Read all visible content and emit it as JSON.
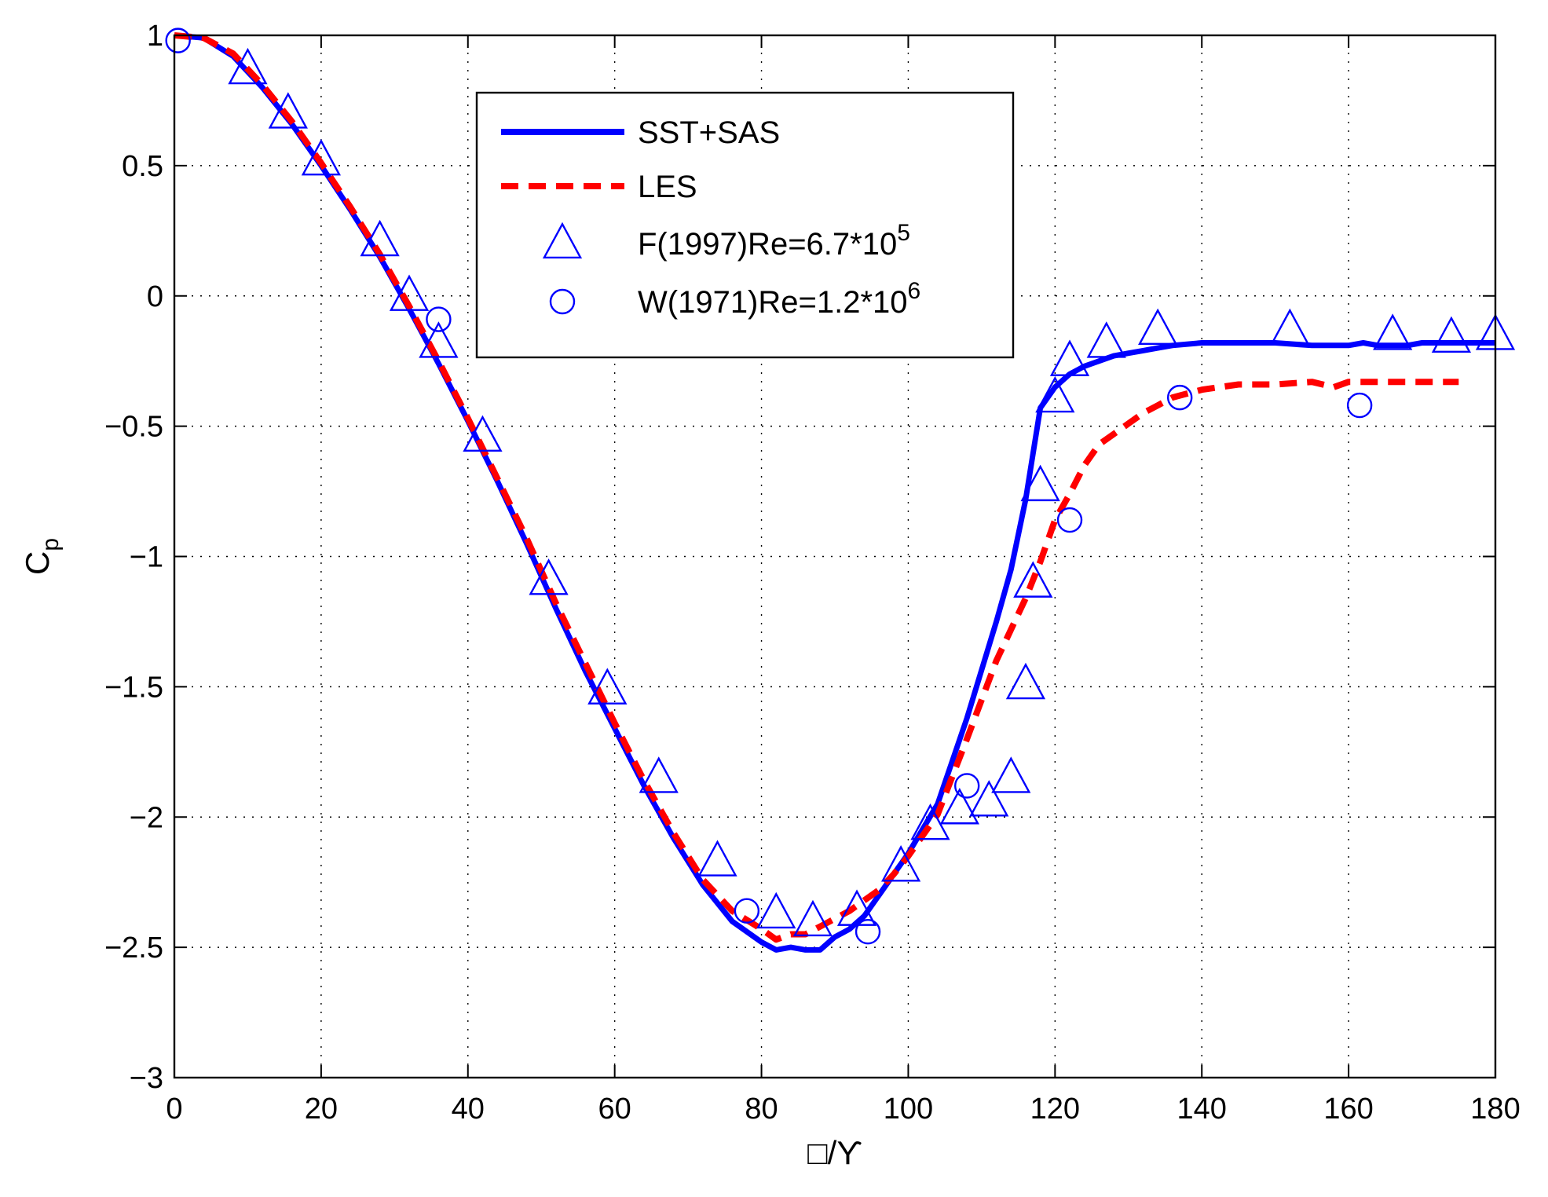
{
  "chart_data": {
    "type": "line",
    "title": "",
    "xlabel": "□/ϒ",
    "ylabel": {
      "main": "C",
      "sub": "p"
    },
    "xlim": [
      0,
      180
    ],
    "ylim": [
      -3,
      1
    ],
    "xticks": [
      0,
      20,
      40,
      60,
      80,
      100,
      120,
      140,
      160,
      180
    ],
    "yticks": [
      1,
      0.5,
      0,
      -0.5,
      -1,
      -1.5,
      -2,
      -2.5,
      -3
    ],
    "xtick_labels": [
      "0",
      "20",
      "40",
      "60",
      "80",
      "100",
      "120",
      "140",
      "160",
      "180"
    ],
    "ytick_labels": [
      "1",
      "0.5",
      "0",
      "−0.5",
      "−1",
      "−1.5",
      "−2",
      "−2.5",
      "−3"
    ],
    "grid": true,
    "legend_position": "top-center",
    "series": [
      {
        "name": "SST+SAS",
        "style": "solid-line",
        "color": "#0000ff",
        "x": [
          0,
          4,
          8,
          12,
          16,
          20,
          24,
          28,
          32,
          36,
          40,
          44,
          48,
          52,
          56,
          60,
          64,
          68,
          72,
          76,
          80,
          82,
          84,
          86,
          88,
          90,
          92,
          94,
          96,
          98,
          100,
          104,
          108,
          112,
          114,
          116,
          118,
          120,
          122,
          124,
          126,
          128,
          130,
          132,
          134,
          136,
          140,
          145,
          150,
          155,
          160,
          162,
          164,
          166,
          168,
          170,
          175,
          180
        ],
        "y": [
          1,
          0.99,
          0.92,
          0.8,
          0.66,
          0.5,
          0.33,
          0.15,
          -0.05,
          -0.26,
          -0.48,
          -0.71,
          -0.95,
          -1.2,
          -1.44,
          -1.66,
          -1.88,
          -2.08,
          -2.26,
          -2.4,
          -2.48,
          -2.51,
          -2.5,
          -2.51,
          -2.51,
          -2.46,
          -2.43,
          -2.38,
          -2.3,
          -2.22,
          -2.14,
          -1.95,
          -1.62,
          -1.25,
          -1.05,
          -0.78,
          -0.43,
          -0.35,
          -0.3,
          -0.27,
          -0.25,
          -0.23,
          -0.22,
          -0.21,
          -0.2,
          -0.19,
          -0.18,
          -0.18,
          -0.18,
          -0.19,
          -0.19,
          -0.18,
          -0.19,
          -0.19,
          -0.19,
          -0.18,
          -0.18,
          -0.18
        ]
      },
      {
        "name": "LES",
        "style": "dashed-line",
        "color": "#ff0000",
        "x": [
          0,
          4,
          8,
          12,
          16,
          20,
          24,
          28,
          32,
          36,
          40,
          44,
          48,
          52,
          56,
          60,
          64,
          68,
          72,
          76,
          80,
          82,
          84,
          86,
          88,
          90,
          92,
          94,
          96,
          98,
          100,
          104,
          108,
          112,
          116,
          118,
          120,
          122,
          124,
          126,
          128,
          130,
          132,
          134,
          136,
          140,
          145,
          150,
          155,
          158,
          160,
          165,
          170,
          175
        ],
        "y": [
          1,
          0.99,
          0.93,
          0.81,
          0.67,
          0.51,
          0.34,
          0.16,
          -0.04,
          -0.25,
          -0.47,
          -0.7,
          -0.93,
          -1.18,
          -1.41,
          -1.64,
          -1.86,
          -2.06,
          -2.24,
          -2.36,
          -2.43,
          -2.47,
          -2.45,
          -2.45,
          -2.42,
          -2.39,
          -2.36,
          -2.32,
          -2.28,
          -2.22,
          -2.15,
          -1.99,
          -1.7,
          -1.4,
          -1.16,
          -1.02,
          -0.86,
          -0.76,
          -0.65,
          -0.57,
          -0.53,
          -0.49,
          -0.45,
          -0.42,
          -0.39,
          -0.36,
          -0.34,
          -0.34,
          -0.33,
          -0.35,
          -0.33,
          -0.33,
          -0.33,
          -0.33
        ]
      },
      {
        "name": "F(1997)Re=6.7*10",
        "name_superscript": "5",
        "style": "triangle-markers",
        "color": "#0000ff",
        "x": [
          10,
          15.5,
          20,
          28,
          32,
          36,
          42,
          51,
          59,
          66,
          74,
          82,
          87,
          93,
          99,
          103,
          107,
          111,
          114,
          116,
          117,
          118,
          120,
          122,
          127,
          134,
          152,
          166,
          174,
          180
        ],
        "y": [
          0.87,
          0.7,
          0.52,
          0.21,
          0.0,
          -0.18,
          -0.54,
          -1.09,
          -1.51,
          -1.85,
          -2.17,
          -2.37,
          -2.4,
          -2.36,
          -2.19,
          -2.03,
          -1.97,
          -1.94,
          -1.85,
          -1.49,
          -1.1,
          -0.73,
          -0.39,
          -0.25,
          -0.18,
          -0.13,
          -0.13,
          -0.15,
          -0.16,
          -0.15
        ]
      },
      {
        "name": "W(1971)Re=1.2*10",
        "name_superscript": "6",
        "style": "circle-markers",
        "color": "#0000ff",
        "x": [
          0.5,
          36,
          78,
          94.5,
          108,
          122,
          137,
          161.5
        ],
        "y": [
          0.98,
          -0.09,
          -2.36,
          -2.44,
          -1.88,
          -0.86,
          -0.39,
          -0.42
        ]
      }
    ]
  }
}
